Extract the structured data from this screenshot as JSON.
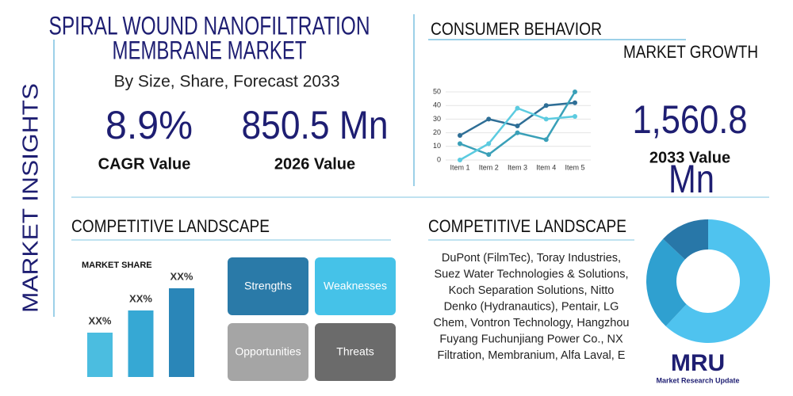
{
  "sidebar": "MARKET INSIGHTS",
  "header": {
    "title_line1": "SPIRAL WOUND NANOFILTRATION",
    "title_line2": "MEMBRANE MARKET",
    "subtitle": "By Size, Share, Forecast 2033"
  },
  "stats": [
    {
      "value": "8.9%",
      "label": "CAGR Value"
    },
    {
      "value": "850.5 Mn",
      "label": "2026 Value"
    }
  ],
  "consumer": {
    "title": "CONSUMER BEHAVIOR",
    "growth_title": "MARKET GROWTH",
    "value_line1": "1,560.8",
    "value_label": "2033 Value",
    "value_line2": "Mn"
  },
  "line_chart": {
    "type": "line",
    "categories": [
      "Item 1",
      "Item 2",
      "Item 3",
      "Item 4",
      "Item 5"
    ],
    "ylim": [
      0,
      50
    ],
    "yticks": [
      0,
      10,
      20,
      30,
      40,
      50
    ],
    "series": [
      {
        "color": "#2e6e96",
        "values": [
          18,
          30,
          25,
          40,
          42
        ]
      },
      {
        "color": "#3aa0b8",
        "values": [
          12,
          4,
          20,
          15,
          50
        ]
      },
      {
        "color": "#5ccbe0",
        "values": [
          0,
          12,
          38,
          30,
          32
        ]
      }
    ]
  },
  "competitive": {
    "title": "COMPETITIVE LANDSCAPE",
    "chart_title": "MARKET SHARE",
    "type": "bar",
    "values": [
      20,
      30,
      40
    ],
    "value_labels": [
      "XX%",
      "XX%",
      "XX%"
    ],
    "ylim": [
      0,
      40
    ],
    "color": "#3bb0d6"
  },
  "swot": [
    "Strengths",
    "Weaknesses",
    "Opportunities",
    "Threats"
  ],
  "companies": {
    "title": "COMPETITIVE LANDSCAPE",
    "lines": [
      "DuPont (FilmTec), Toray Industries,",
      "Suez Water Technologies & Solutions,",
      "Koch Separation Solutions, Nitto",
      "Denko (Hydranautics), Pentair, LG",
      "Chem, Vontron Technology, Hangzhou",
      "Fuyang Fuchunjiang Power Co., NX",
      "Filtration, Membranium, Alfa Laval, E"
    ]
  },
  "donut": {
    "type": "pie",
    "values": [
      62,
      25,
      13
    ],
    "colors": [
      "#4fc3ef",
      "#2fa0d0",
      "#2877a8"
    ]
  },
  "logo": {
    "mark": "MRU",
    "name": "Market Research Update"
  }
}
